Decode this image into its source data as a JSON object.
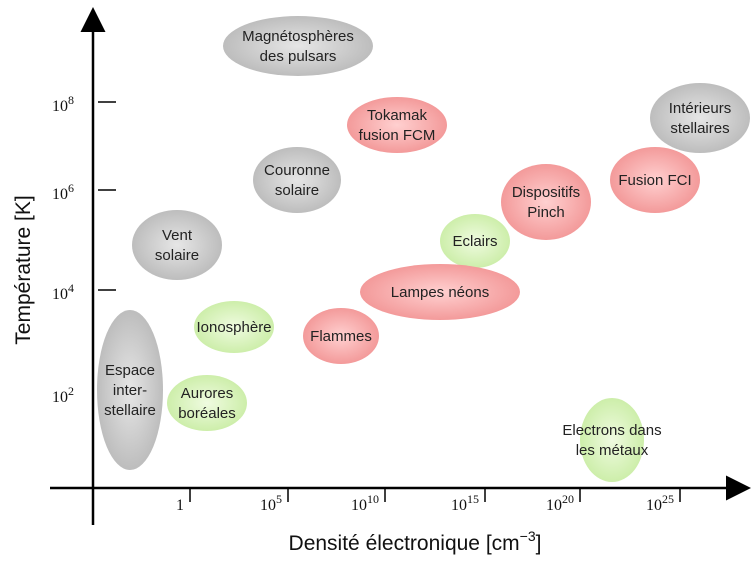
{
  "y_axis": {
    "label": "Température [K]",
    "ticks": [
      {
        "base": "10",
        "exp": "8"
      },
      {
        "base": "10",
        "exp": "6"
      },
      {
        "base": "10",
        "exp": "4"
      },
      {
        "base": "10",
        "exp": "2"
      }
    ]
  },
  "x_axis": {
    "label_parts": [
      "Densité électronique [cm",
      "−3",
      "]"
    ],
    "ticks": [
      {
        "base": "1",
        "exp": ""
      },
      {
        "base": "10",
        "exp": "5"
      },
      {
        "base": "10",
        "exp": "10"
      },
      {
        "base": "10",
        "exp": "15"
      },
      {
        "base": "10",
        "exp": "20"
      },
      {
        "base": "10",
        "exp": "25"
      }
    ]
  },
  "regions": [
    {
      "lines": [
        "Magnétosphères",
        "des pulsars"
      ]
    },
    {
      "lines": [
        "Tokamak",
        "fusion FCM"
      ]
    },
    {
      "lines": [
        "Intérieurs",
        "stellaires"
      ]
    },
    {
      "lines": [
        "Couronne",
        "solaire"
      ]
    },
    {
      "lines": [
        "Fusion FCI"
      ]
    },
    {
      "lines": [
        "Dispositifs",
        "Pinch"
      ]
    },
    {
      "lines": [
        "Vent",
        "solaire"
      ]
    },
    {
      "lines": [
        "Eclairs"
      ]
    },
    {
      "lines": [
        "Lampes néons"
      ]
    },
    {
      "lines": [
        "Ionosphère"
      ]
    },
    {
      "lines": [
        "Flammes"
      ]
    },
    {
      "lines": [
        "Espace",
        "inter-",
        "stellaire"
      ]
    },
    {
      "lines": [
        "Aurores",
        "boréales"
      ]
    },
    {
      "lines": [
        "Electrons dans",
        "les métaux"
      ]
    }
  ]
}
